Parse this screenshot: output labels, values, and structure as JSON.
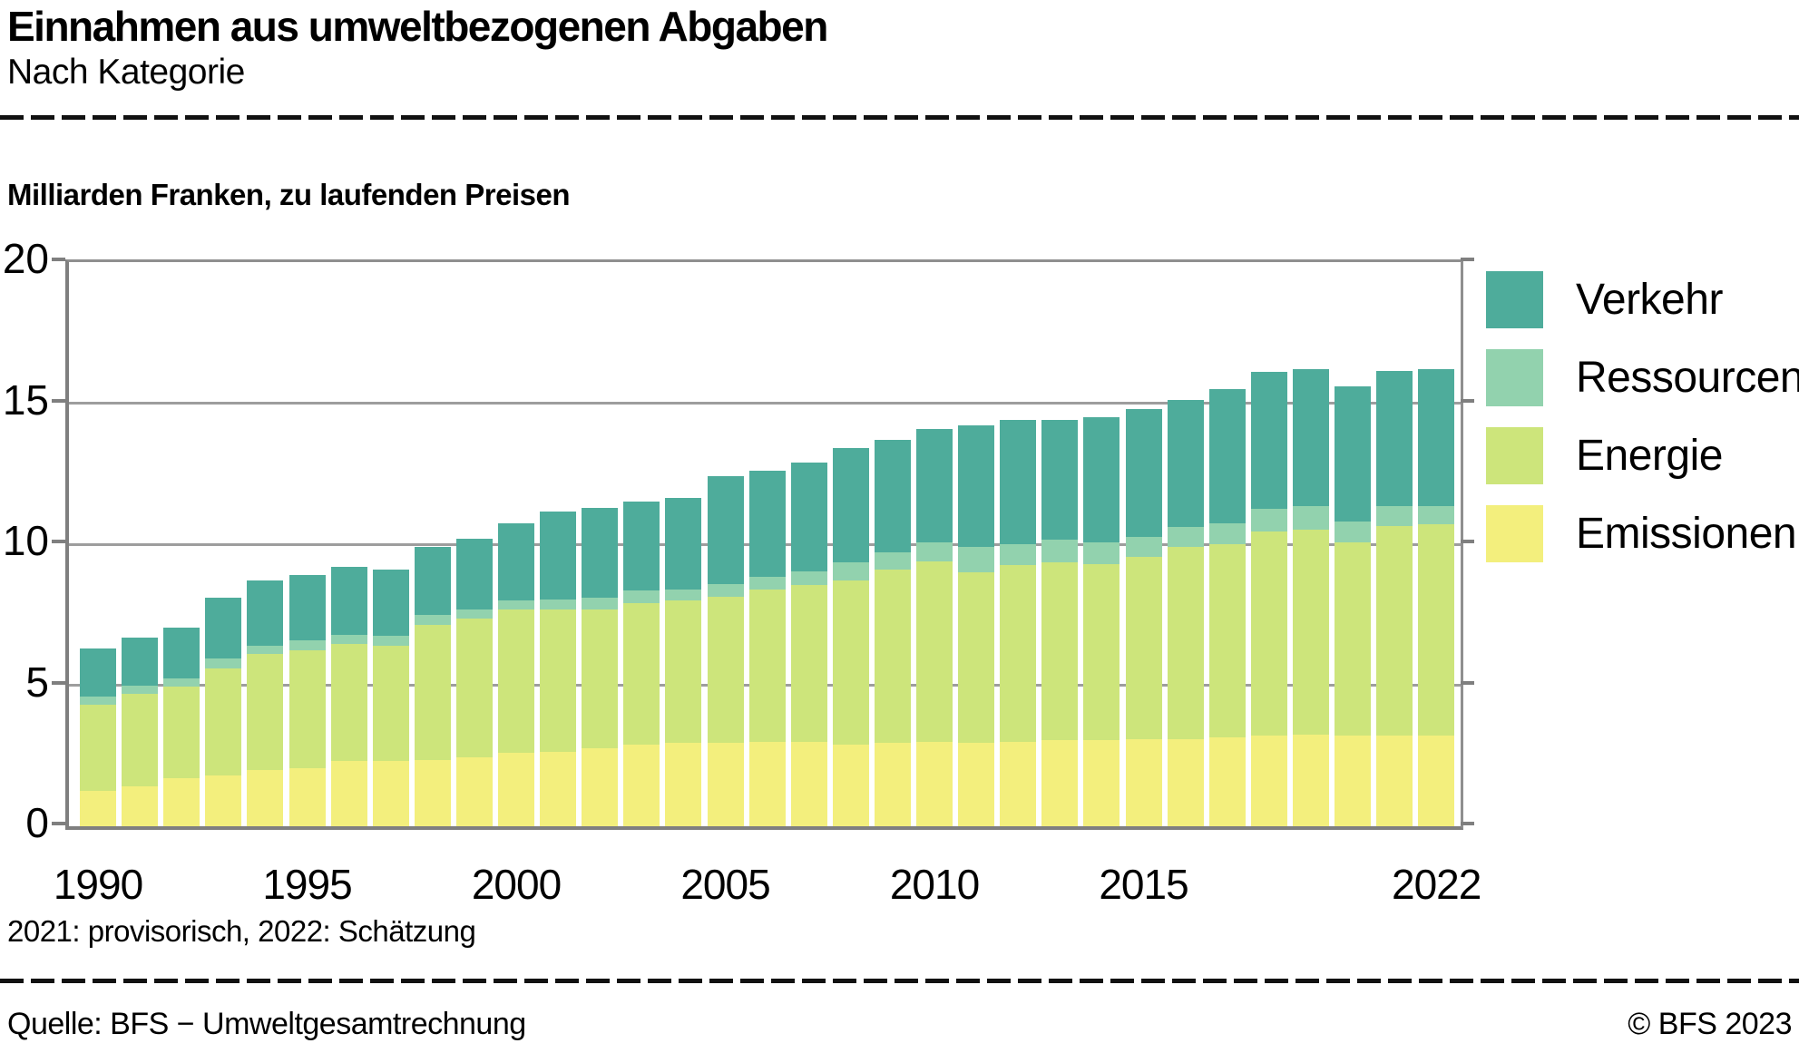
{
  "header": {
    "title": "Einnahmen aus umweltbezogenen Abgaben",
    "subtitle": "Nach Kategorie"
  },
  "unit_label": "Milliarden Franken, zu laufenden Preisen",
  "footnote": "2021: provisorisch, 2022: Schätzung",
  "footer": {
    "source": "Quelle: BFS − Umweltgesamtrechnung",
    "copyright": "© BFS 2023"
  },
  "colors": {
    "verkehr": "#4eac9b",
    "ressourcen": "#92d2ae",
    "energie": "#cde57b",
    "emissionen": "#f3ef7d",
    "gridline": "#9d9d9d",
    "axis": "#7f7f7f",
    "rule": "#111111"
  },
  "chart_data": {
    "type": "bar",
    "stacked": true,
    "title": "Einnahmen aus umweltbezogenen Abgaben",
    "subtitle": "Nach Kategorie",
    "ylabel": "Milliarden Franken, zu laufenden Preisen",
    "xlabel": "",
    "ylim": [
      0,
      20
    ],
    "yticks": [
      0,
      5,
      10,
      15,
      20
    ],
    "grid": true,
    "legend_position": "right",
    "x_tick_years": [
      1990,
      1995,
      2000,
      2005,
      2010,
      2015,
      2022
    ],
    "categories": [
      1990,
      1991,
      1992,
      1993,
      1994,
      1995,
      1996,
      1997,
      1998,
      1999,
      2000,
      2001,
      2002,
      2003,
      2004,
      2005,
      2006,
      2007,
      2008,
      2009,
      2010,
      2011,
      2012,
      2013,
      2014,
      2015,
      2016,
      2017,
      2018,
      2019,
      2020,
      2021,
      2022
    ],
    "series": [
      {
        "name": "Emissionen",
        "color": "#f3ef7d",
        "values": [
          1.25,
          1.4,
          1.7,
          1.8,
          2.0,
          2.05,
          2.3,
          2.3,
          2.35,
          2.45,
          2.6,
          2.65,
          2.75,
          2.9,
          2.95,
          2.95,
          3.0,
          3.0,
          2.9,
          2.95,
          3.0,
          2.95,
          3.0,
          3.05,
          3.05,
          3.1,
          3.1,
          3.15,
          3.2,
          3.25,
          3.2,
          3.2,
          3.2
        ]
      },
      {
        "name": "Energie",
        "color": "#cde57b",
        "values": [
          3.05,
          3.3,
          3.25,
          3.8,
          4.1,
          4.2,
          4.15,
          4.1,
          4.8,
          4.9,
          5.1,
          5.05,
          4.95,
          5.0,
          5.05,
          5.2,
          5.4,
          5.55,
          5.8,
          6.15,
          6.4,
          6.05,
          6.25,
          6.3,
          6.25,
          6.45,
          6.8,
          6.85,
          7.25,
          7.25,
          6.85,
          7.45,
          7.5
        ]
      },
      {
        "name": "Ressourcen",
        "color": "#92d2ae",
        "values": [
          0.3,
          0.3,
          0.3,
          0.35,
          0.3,
          0.35,
          0.35,
          0.35,
          0.35,
          0.35,
          0.3,
          0.35,
          0.4,
          0.45,
          0.4,
          0.45,
          0.45,
          0.5,
          0.65,
          0.6,
          0.65,
          0.9,
          0.75,
          0.8,
          0.75,
          0.7,
          0.7,
          0.75,
          0.8,
          0.85,
          0.75,
          0.7,
          0.65
        ]
      },
      {
        "name": "Verkehr",
        "color": "#4eac9b",
        "values": [
          1.7,
          1.7,
          1.8,
          2.15,
          2.3,
          2.3,
          2.4,
          2.35,
          2.4,
          2.5,
          2.75,
          3.1,
          3.2,
          3.15,
          3.25,
          3.8,
          3.75,
          3.85,
          4.05,
          4.0,
          4.05,
          4.3,
          4.4,
          4.25,
          4.45,
          4.55,
          4.5,
          4.75,
          4.85,
          4.85,
          4.8,
          4.8,
          4.85
        ]
      }
    ],
    "legend": [
      "Verkehr",
      "Ressourcen",
      "Energie",
      "Emissionen"
    ]
  }
}
